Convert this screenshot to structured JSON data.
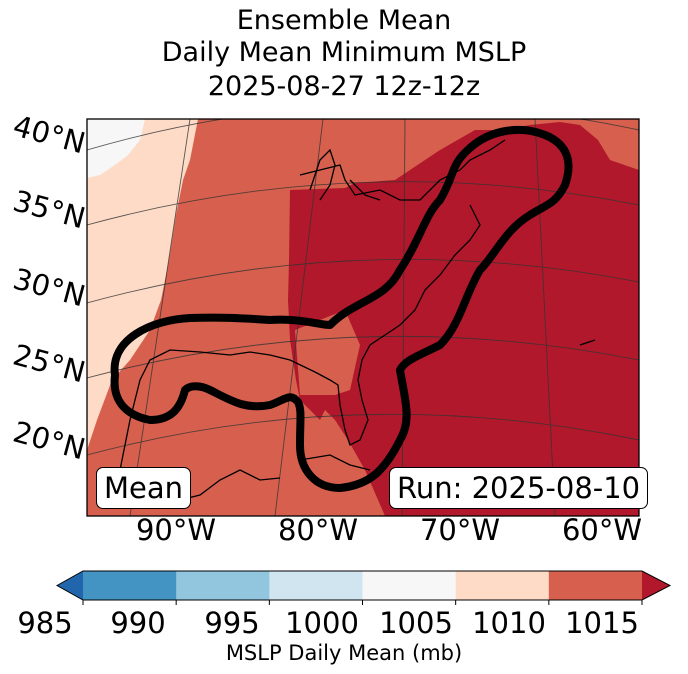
{
  "title": {
    "line1": "Ensemble Mean",
    "line2": "Daily Mean Minimum MSLP",
    "line3": "2025-08-27 12z-12z"
  },
  "map": {
    "lat_labels": [
      "40°N",
      "35°N",
      "30°N",
      "25°N",
      "20°N"
    ],
    "lon_labels": [
      "90°W",
      "80°W",
      "70°W",
      "60°W"
    ],
    "legend_box": "Mean",
    "run_box": "Run: 2025-08-10"
  },
  "colorbar": {
    "ticks": [
      "985",
      "990",
      "995",
      "1000",
      "1005",
      "1010",
      "1015"
    ],
    "bin_colors": [
      "#4393c3",
      "#92c5de",
      "#d1e5f0",
      "#f7f7f7",
      "#fddbc7",
      "#d6604d"
    ],
    "under_color": "#2166ac",
    "over_color": "#b2182b",
    "label": "MSLP Daily Mean (mb)"
  }
}
